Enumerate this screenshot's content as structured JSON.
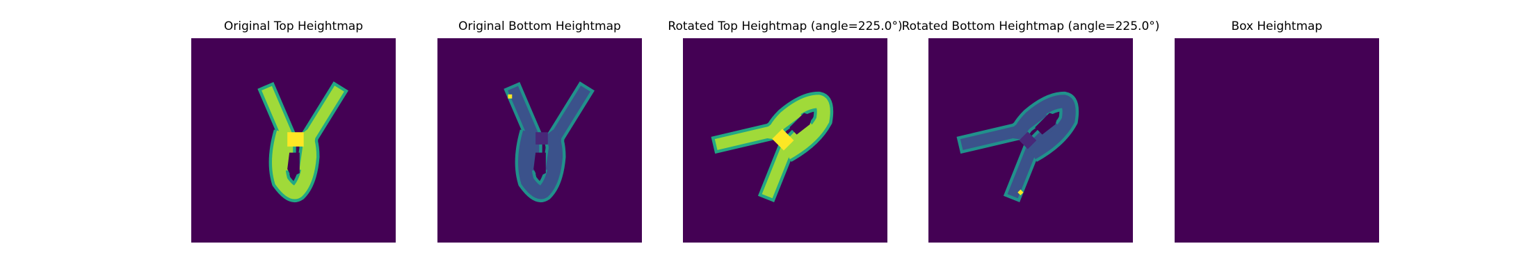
{
  "figure": {
    "background": "#ffffff",
    "colormap": "viridis",
    "background_color": "#440154"
  },
  "chart_data": [
    {
      "type": "heatmap",
      "title": "Original Top Heightmap",
      "shape": "v-clip",
      "orientation": "upright",
      "layer": "top",
      "colors": {
        "edge": "#22a884",
        "body": "#a0da39",
        "peak": "#fde725"
      }
    },
    {
      "type": "heatmap",
      "title": "Original Bottom Heightmap",
      "shape": "v-clip",
      "orientation": "upright",
      "layer": "bottom",
      "colors": {
        "edge": "#21918c",
        "body": "#3b528b",
        "peak": "#fde725"
      }
    },
    {
      "type": "heatmap",
      "title": "Rotated Top Heightmap (angle=225.0°)",
      "shape": "v-clip",
      "orientation": "rotated",
      "angle_deg": 225.0,
      "layer": "top",
      "colors": {
        "edge": "#22a884",
        "body": "#a0da39",
        "peak": "#fde725"
      }
    },
    {
      "type": "heatmap",
      "title": "Rotated Bottom Heightmap (angle=225.0°)",
      "shape": "v-clip",
      "orientation": "rotated",
      "angle_deg": 225.0,
      "layer": "bottom",
      "colors": {
        "edge": "#21918c",
        "body": "#3b528b",
        "peak": "#fde725"
      }
    },
    {
      "type": "heatmap",
      "title": "Box Heightmap",
      "shape": "empty",
      "orientation": "upright",
      "layer": "box",
      "colors": {
        "edge": "#440154",
        "body": "#440154",
        "peak": "#440154"
      }
    }
  ]
}
